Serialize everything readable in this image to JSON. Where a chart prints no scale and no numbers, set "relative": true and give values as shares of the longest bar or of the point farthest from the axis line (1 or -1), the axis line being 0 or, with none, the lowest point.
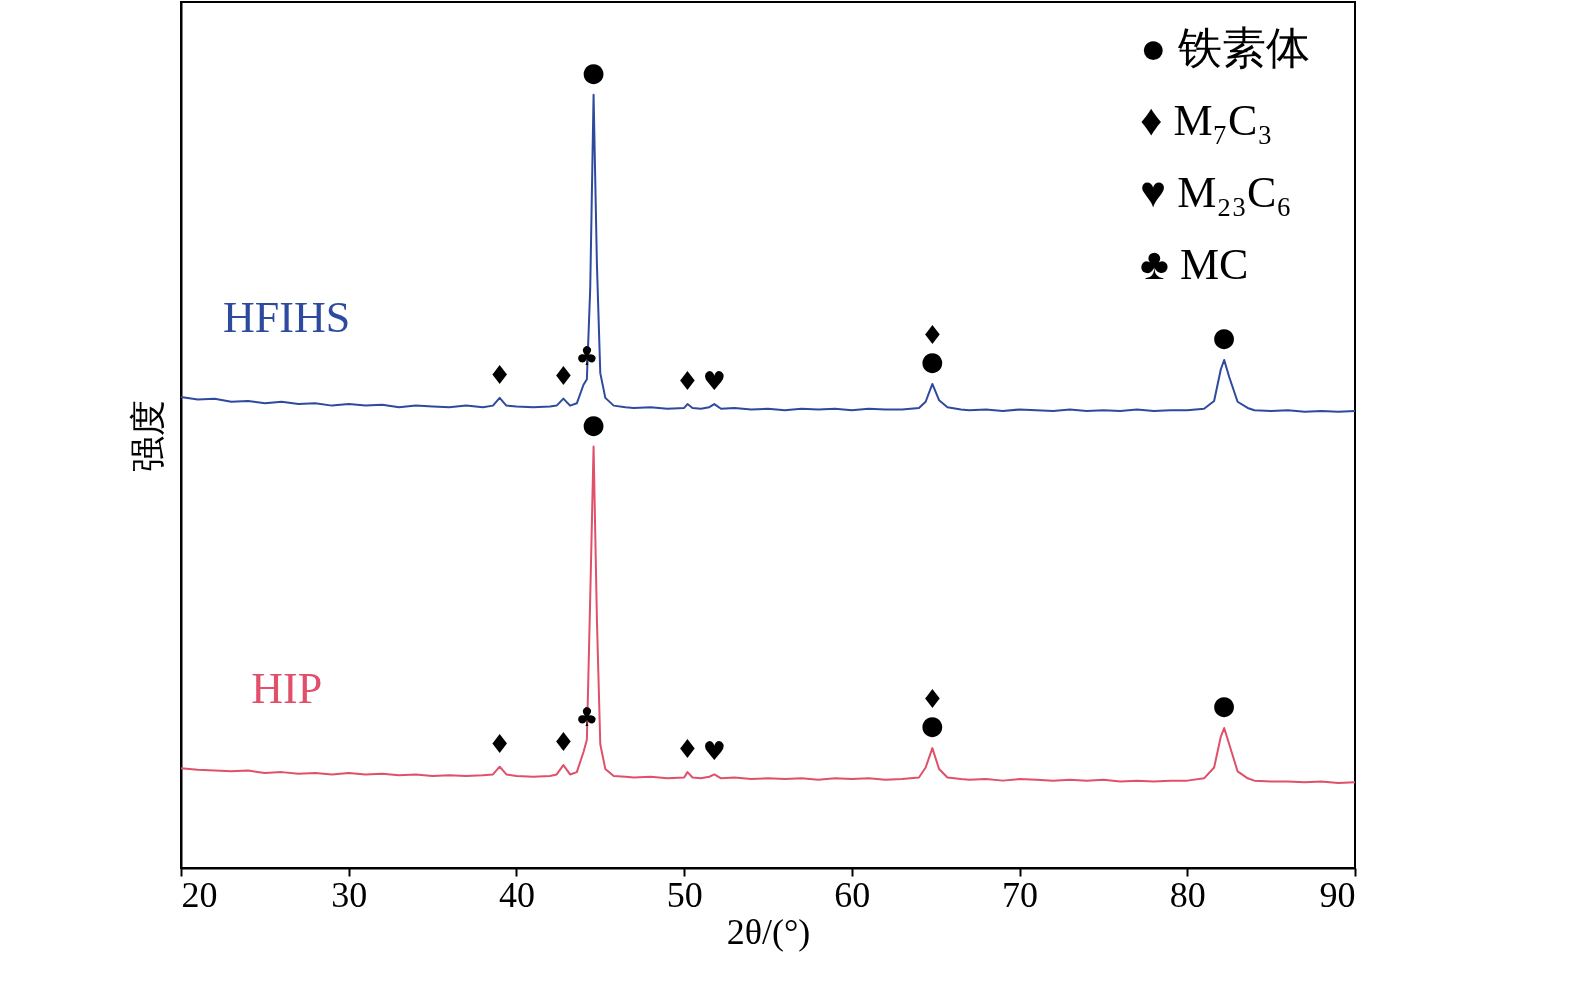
{
  "chart_data": {
    "type": "line",
    "xlabel": "2θ/(°)",
    "ylabel": "强度",
    "relative": true,
    "grid": false,
    "legend": false,
    "xlim": [
      20,
      90
    ],
    "xticks": [
      20,
      30,
      40,
      50,
      60,
      70,
      80,
      90
    ],
    "x": [
      20,
      21,
      22,
      23,
      24,
      25,
      26,
      27,
      28,
      29,
      30,
      31,
      32,
      33,
      34,
      35,
      36,
      37,
      38,
      38.6,
      39.0,
      39.4,
      40,
      41,
      42,
      42.4,
      42.8,
      43.2,
      43.6,
      44.0,
      44.2,
      44.4,
      44.6,
      44.8,
      45.0,
      45.3,
      45.8,
      46.5,
      47,
      48,
      49,
      50,
      50.2,
      50.5,
      51,
      51.5,
      51.8,
      52.2,
      53,
      54,
      55,
      56,
      57,
      58,
      59,
      60,
      61,
      62,
      63,
      64,
      64.4,
      64.8,
      65.2,
      65.7,
      66.5,
      67,
      68,
      69,
      70,
      71,
      72,
      73,
      74,
      75,
      76,
      77,
      78,
      79,
      80,
      81,
      81.6,
      82.0,
      82.2,
      82.5,
      83,
      83.6,
      84,
      85,
      86,
      87,
      88,
      89,
      90
    ],
    "series": [
      {
        "name": "HFIHS",
        "color": "#2e4a9e",
        "values": [
          0.609,
          0.606,
          0.607,
          0.603,
          0.604,
          0.601,
          0.603,
          0.6,
          0.601,
          0.598,
          0.6,
          0.598,
          0.599,
          0.596,
          0.598,
          0.597,
          0.596,
          0.598,
          0.596,
          0.598,
          0.608,
          0.598,
          0.597,
          0.596,
          0.597,
          0.598,
          0.607,
          0.598,
          0.601,
          0.625,
          0.632,
          0.75,
          1.0,
          0.78,
          0.64,
          0.608,
          0.598,
          0.596,
          0.595,
          0.596,
          0.594,
          0.595,
          0.6,
          0.595,
          0.594,
          0.596,
          0.6,
          0.594,
          0.595,
          0.593,
          0.594,
          0.592,
          0.594,
          0.593,
          0.594,
          0.592,
          0.594,
          0.593,
          0.593,
          0.595,
          0.603,
          0.626,
          0.605,
          0.596,
          0.593,
          0.592,
          0.593,
          0.591,
          0.593,
          0.592,
          0.591,
          0.593,
          0.591,
          0.592,
          0.591,
          0.593,
          0.591,
          0.592,
          0.592,
          0.594,
          0.604,
          0.645,
          0.657,
          0.635,
          0.603,
          0.595,
          0.592,
          0.591,
          0.592,
          0.59,
          0.591,
          0.59,
          0.591
        ]
      },
      {
        "name": "HIP",
        "color": "#e0506a",
        "values": [
          0.129,
          0.127,
          0.126,
          0.125,
          0.126,
          0.123,
          0.124,
          0.122,
          0.123,
          0.121,
          0.123,
          0.121,
          0.122,
          0.12,
          0.121,
          0.119,
          0.12,
          0.119,
          0.12,
          0.121,
          0.131,
          0.121,
          0.119,
          0.118,
          0.119,
          0.121,
          0.133,
          0.121,
          0.124,
          0.15,
          0.166,
          0.35,
          0.545,
          0.32,
          0.16,
          0.128,
          0.119,
          0.118,
          0.117,
          0.118,
          0.116,
          0.117,
          0.124,
          0.117,
          0.116,
          0.118,
          0.121,
          0.116,
          0.117,
          0.115,
          0.116,
          0.115,
          0.116,
          0.114,
          0.116,
          0.115,
          0.116,
          0.114,
          0.115,
          0.117,
          0.13,
          0.155,
          0.128,
          0.117,
          0.115,
          0.114,
          0.115,
          0.113,
          0.115,
          0.114,
          0.113,
          0.114,
          0.113,
          0.114,
          0.112,
          0.113,
          0.112,
          0.113,
          0.113,
          0.116,
          0.13,
          0.17,
          0.181,
          0.16,
          0.125,
          0.116,
          0.113,
          0.112,
          0.112,
          0.111,
          0.112,
          0.11,
          0.111
        ]
      }
    ],
    "annotations": [
      "● 铁素体",
      "♦ M₇C₃",
      "♥ M₂₃C₆",
      "♣ MC",
      {
        "text": "●",
        "x": 44.6,
        "y": 1.0
      },
      {
        "text": "♦",
        "x": 39.0,
        "y": 0.608
      },
      {
        "text": "♦",
        "x": 42.8,
        "y": 0.607
      },
      {
        "text": "♣",
        "x": 44.2,
        "y": 0.632
      },
      {
        "text": "♦",
        "x": 50.2,
        "y": 0.6
      },
      {
        "text": "♥",
        "x": 51.8,
        "y": 0.6
      },
      {
        "text": "●",
        "x": 64.8,
        "y": 0.626
      },
      {
        "text": "♦",
        "x": 64.8,
        "y": 0.626
      },
      {
        "text": "●",
        "x": 82.2,
        "y": 0.657
      },
      {
        "text": "●",
        "x": 44.6,
        "y": 0.545
      },
      {
        "text": "♦",
        "x": 39.0,
        "y": 0.131
      },
      {
        "text": "♦",
        "x": 42.8,
        "y": 0.133
      },
      {
        "text": "♣",
        "x": 44.2,
        "y": 0.166
      },
      {
        "text": "♦",
        "x": 50.2,
        "y": 0.124
      },
      {
        "text": "♥",
        "x": 51.8,
        "y": 0.121
      },
      {
        "text": "●",
        "x": 64.8,
        "y": 0.155
      },
      {
        "text": "♦",
        "x": 64.8,
        "y": 0.155
      },
      {
        "text": "●",
        "x": 82.2,
        "y": 0.181
      }
    ]
  }
}
